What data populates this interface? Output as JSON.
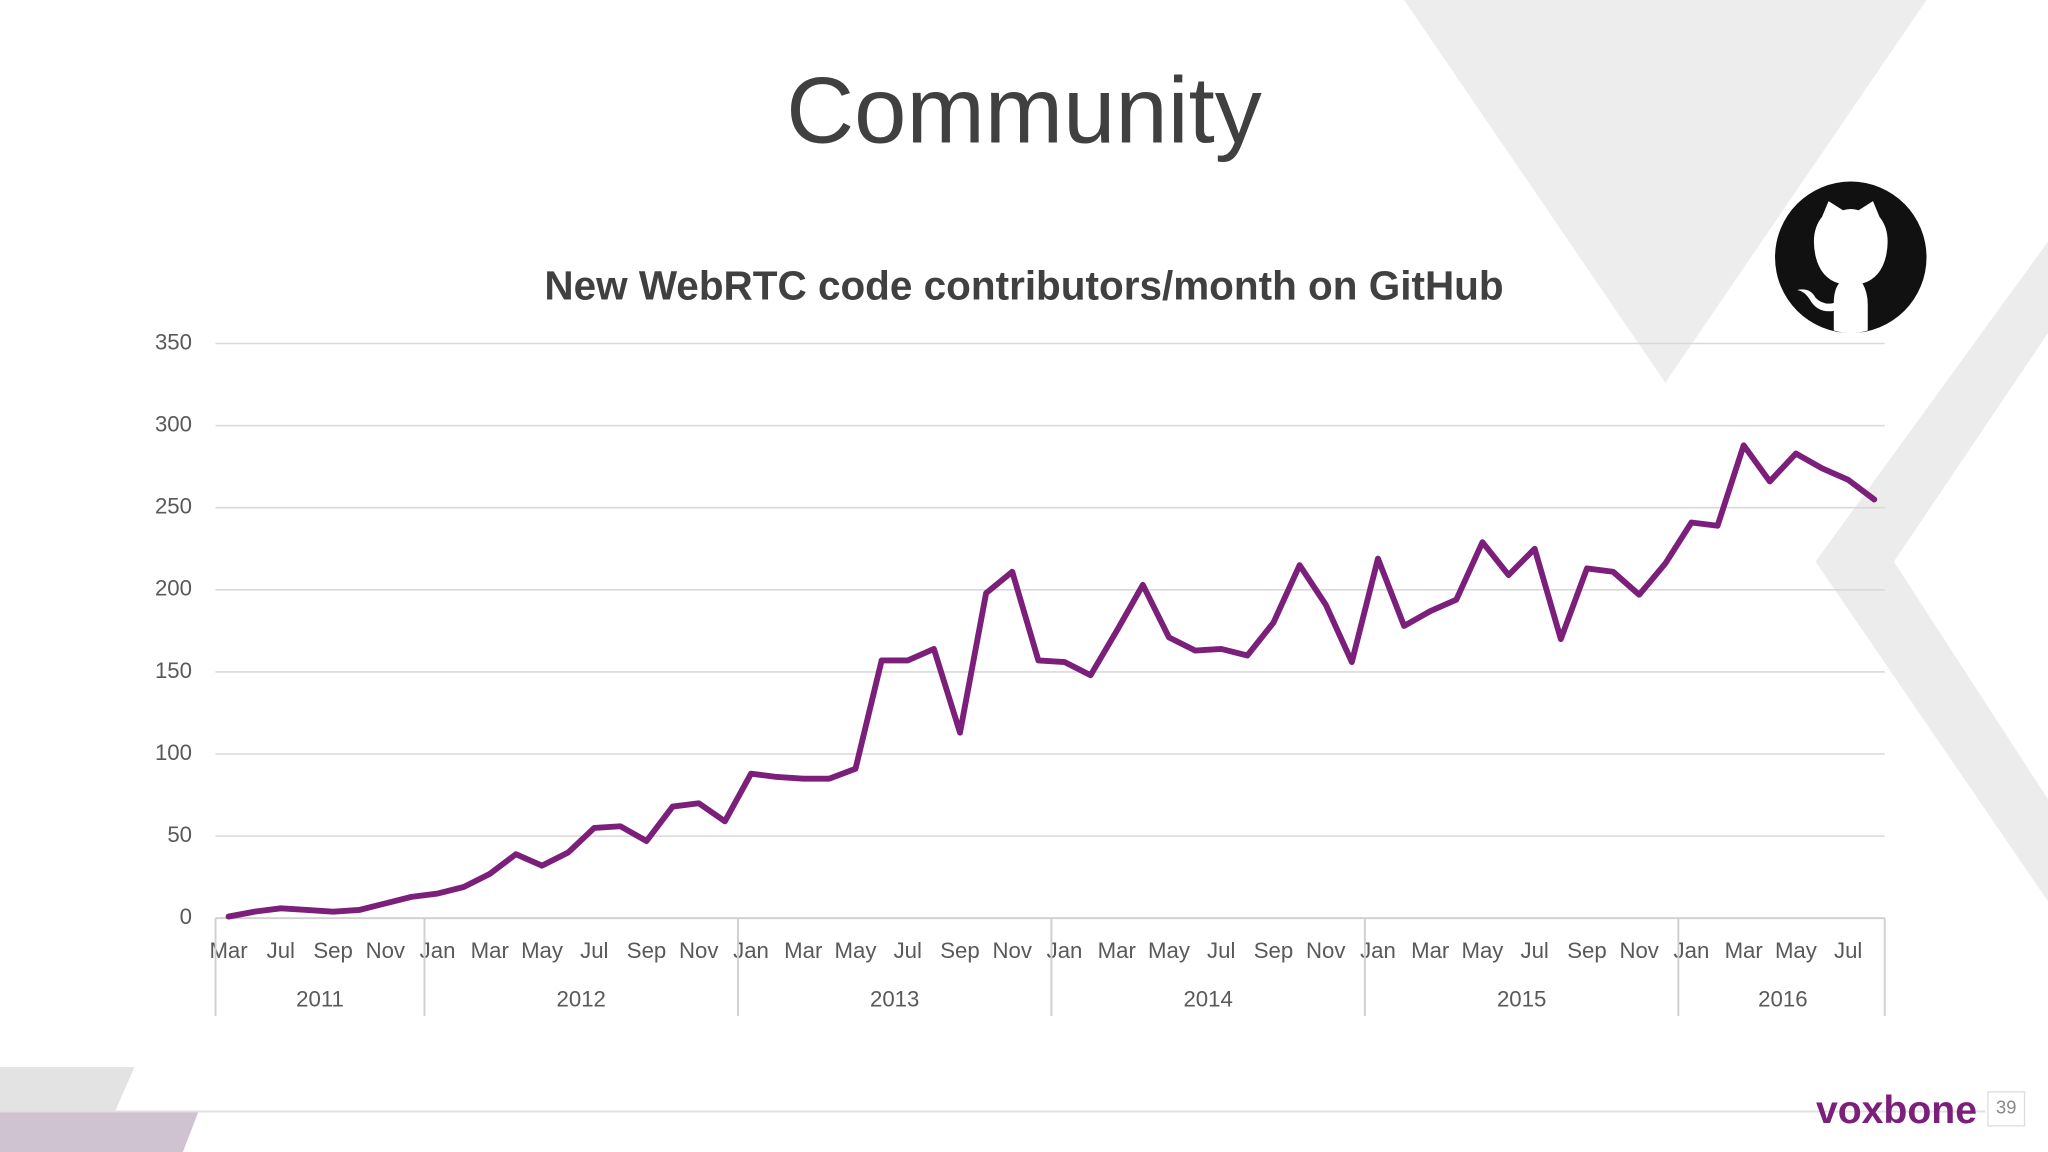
{
  "slide": {
    "title": "Community",
    "brand": "voxbone",
    "page_number": "39"
  },
  "chart_data": {
    "type": "line",
    "title": "New WebRTC code contributors/month on GitHub",
    "categories": [
      "Mar",
      null,
      "Jul",
      null,
      "Sep",
      null,
      "Nov",
      null,
      "Jan",
      null,
      "Mar",
      null,
      "May",
      null,
      "Jul",
      null,
      "Sep",
      null,
      "Nov",
      null,
      "Jan",
      null,
      "Mar",
      null,
      "May",
      null,
      "Jul",
      null,
      "Sep",
      null,
      "Nov",
      null,
      "Jan",
      null,
      "Mar",
      null,
      "May",
      null,
      "Jul",
      null,
      "Sep",
      null,
      "Nov",
      null,
      "Jan",
      null,
      "Mar",
      null,
      "May",
      null,
      "Jul",
      null,
      "Sep",
      null,
      "Nov",
      null,
      "Jan",
      null,
      "Mar",
      null,
      "May",
      null,
      "Jul",
      null
    ],
    "category_groups": [
      {
        "name": "2011",
        "size": 8
      },
      {
        "name": "2012",
        "size": 12
      },
      {
        "name": "2013",
        "size": 12
      },
      {
        "name": "2014",
        "size": 12
      },
      {
        "name": "2015",
        "size": 12
      },
      {
        "name": "2016",
        "size": 8
      }
    ],
    "series": [
      {
        "name": "Contributors",
        "color": "#7b1f7a",
        "values": [
          1,
          4,
          6,
          5,
          4,
          5,
          9,
          13,
          15,
          19,
          27,
          39,
          32,
          40,
          55,
          56,
          47,
          68,
          70,
          59,
          88,
          86,
          85,
          85,
          91,
          157,
          157,
          164,
          113,
          198,
          211,
          157,
          156,
          148,
          175,
          203,
          171,
          163,
          164,
          160,
          180,
          215,
          191,
          156,
          219,
          178,
          187,
          194,
          229,
          209,
          225,
          170,
          213,
          211,
          197,
          216,
          241,
          239,
          288,
          266,
          283,
          274,
          267,
          255
        ]
      }
    ],
    "ylim": [
      0,
      350
    ],
    "yticks": [
      0,
      50,
      100,
      150,
      200,
      250,
      300,
      350
    ],
    "grid": true
  }
}
